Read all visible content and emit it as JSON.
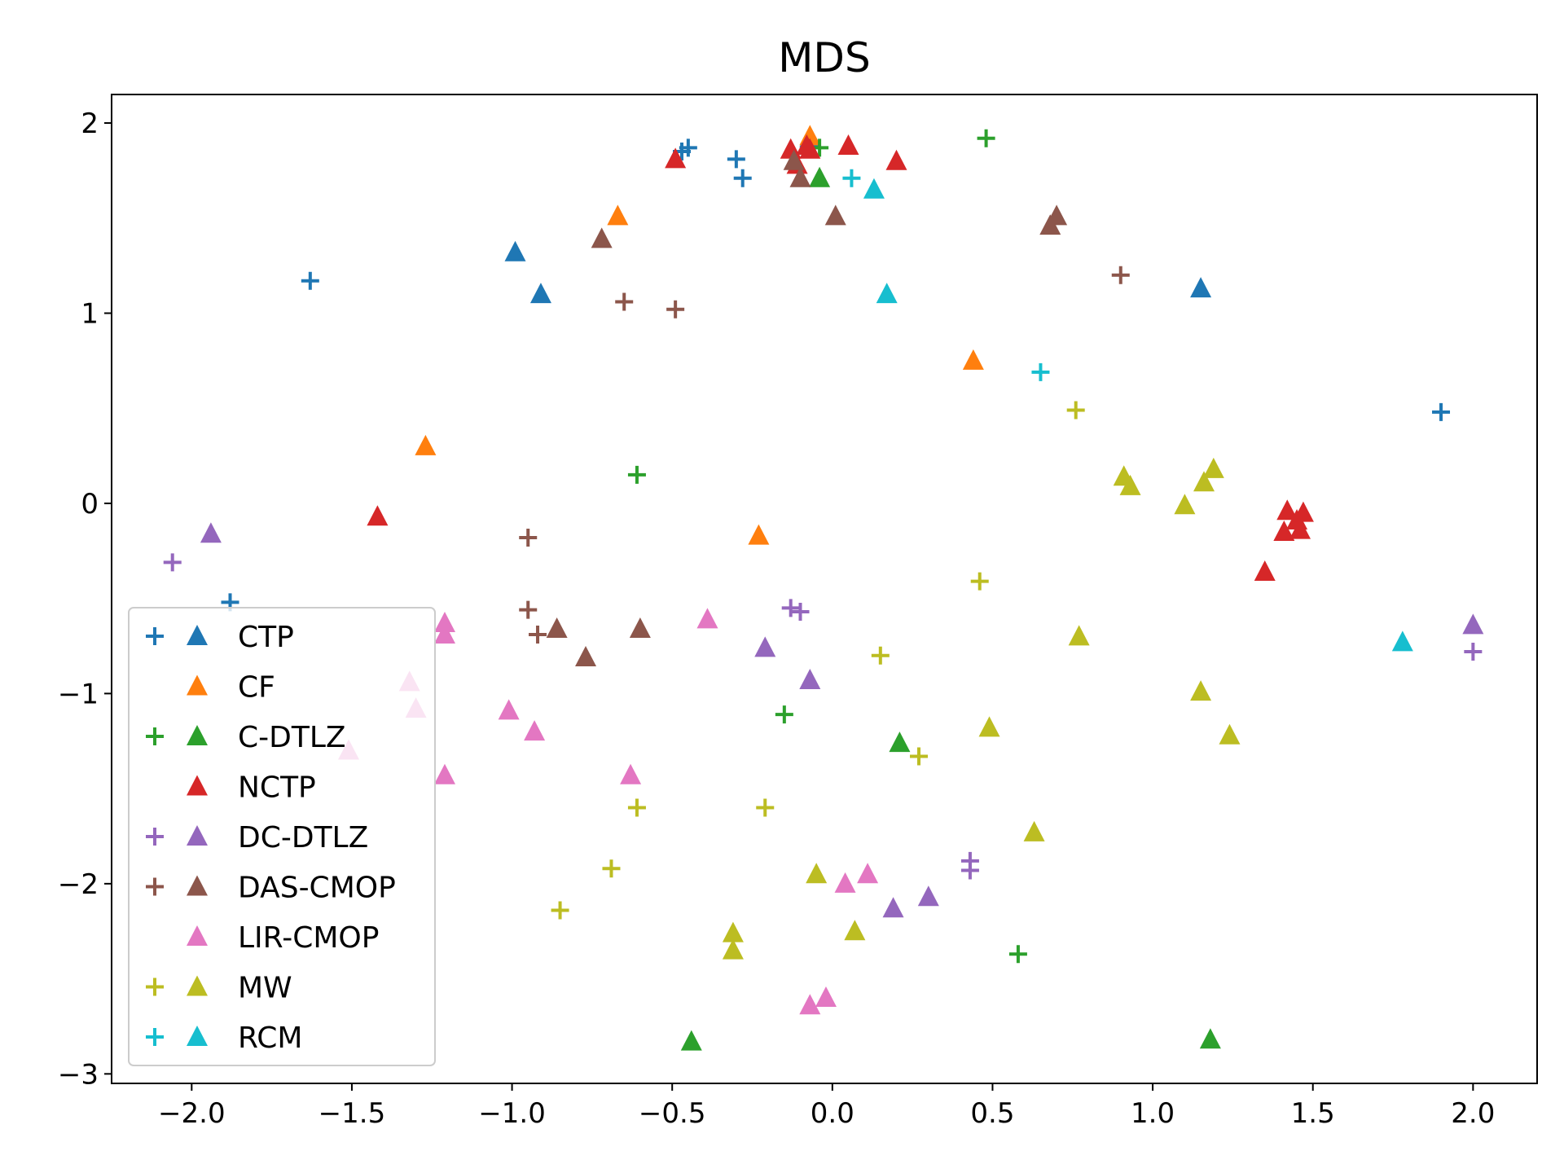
{
  "chart_data": {
    "type": "scatter",
    "title": "MDS",
    "xlabel": "",
    "ylabel": "",
    "xlim": [
      -2.25,
      2.2
    ],
    "ylim": [
      -3.05,
      2.15
    ],
    "xticks": [
      -2.0,
      -1.5,
      -1.0,
      -0.5,
      0.0,
      0.5,
      1.0,
      1.5,
      2.0
    ],
    "xtick_labels": [
      "−2.0",
      "−1.5",
      "−1.0",
      "−0.5",
      "0.0",
      "0.5",
      "1.0",
      "1.5",
      "2.0"
    ],
    "yticks": [
      2,
      1,
      0,
      -1,
      -2,
      -3
    ],
    "ytick_labels": [
      "2",
      "1",
      "0",
      "−1",
      "−2",
      "−3"
    ],
    "legend_position": "lower-left",
    "series": [
      {
        "name": "CTP",
        "color": "#1f77b4",
        "plus": [
          [
            -1.63,
            1.17
          ],
          [
            -0.47,
            1.85
          ],
          [
            -0.45,
            1.87
          ],
          [
            -0.3,
            1.81
          ],
          [
            -0.28,
            1.71
          ],
          [
            -1.88,
            -0.52
          ],
          [
            1.9,
            0.48
          ]
        ],
        "triangle": [
          [
            -0.99,
            1.32
          ],
          [
            -0.91,
            1.1
          ],
          [
            1.15,
            1.13
          ],
          [
            -0.07,
            1.92
          ]
        ]
      },
      {
        "name": "CF",
        "color": "#ff7f0e",
        "plus": [],
        "triangle": [
          [
            -0.67,
            1.51
          ],
          [
            0.44,
            0.75
          ],
          [
            -1.27,
            0.3
          ],
          [
            -0.23,
            -0.17
          ],
          [
            -0.07,
            1.93
          ]
        ]
      },
      {
        "name": "C-DTLZ",
        "color": "#2ca02c",
        "plus": [
          [
            0.48,
            1.92
          ],
          [
            -0.61,
            0.15
          ],
          [
            -0.15,
            -1.11
          ],
          [
            0.58,
            -2.37
          ],
          [
            -0.04,
            1.87
          ]
        ],
        "triangle": [
          [
            -0.04,
            1.71
          ],
          [
            0.21,
            -1.26
          ],
          [
            -0.44,
            -2.83
          ],
          [
            1.18,
            -2.82
          ]
        ]
      },
      {
        "name": "NCTP",
        "color": "#d62728",
        "plus": [],
        "triangle": [
          [
            -0.49,
            1.81
          ],
          [
            -0.13,
            1.86
          ],
          [
            -0.11,
            1.78
          ],
          [
            -0.08,
            1.88
          ],
          [
            -0.07,
            1.86
          ],
          [
            0.05,
            1.88
          ],
          [
            0.2,
            1.8
          ],
          [
            -1.42,
            -0.07
          ],
          [
            1.42,
            -0.04
          ],
          [
            1.45,
            -0.09
          ],
          [
            1.47,
            -0.05
          ],
          [
            1.41,
            -0.15
          ],
          [
            1.46,
            -0.14
          ],
          [
            1.35,
            -0.36
          ]
        ]
      },
      {
        "name": "DC-DTLZ",
        "color": "#9467bd",
        "plus": [
          [
            -2.06,
            -0.31
          ],
          [
            -0.13,
            -0.55
          ],
          [
            -0.1,
            -0.57
          ],
          [
            2.0,
            -0.78
          ],
          [
            0.43,
            -1.88
          ],
          [
            0.43,
            -1.93
          ]
        ],
        "triangle": [
          [
            -1.94,
            -0.16
          ],
          [
            -0.21,
            -0.76
          ],
          [
            -0.07,
            -0.93
          ],
          [
            0.19,
            -2.13
          ],
          [
            0.3,
            -2.07
          ],
          [
            2.0,
            -0.64
          ]
        ]
      },
      {
        "name": "DAS-CMOP",
        "color": "#8c564b",
        "plus": [
          [
            -0.65,
            1.06
          ],
          [
            -0.49,
            1.02
          ],
          [
            0.9,
            1.2
          ],
          [
            -0.95,
            -0.18
          ],
          [
            -0.95,
            -0.56
          ],
          [
            -0.92,
            -0.69
          ]
        ],
        "triangle": [
          [
            -0.72,
            1.39
          ],
          [
            -0.12,
            1.8
          ],
          [
            -0.1,
            1.71
          ],
          [
            0.01,
            1.51
          ],
          [
            0.68,
            1.46
          ],
          [
            0.7,
            1.51
          ],
          [
            -0.86,
            -0.66
          ],
          [
            -0.77,
            -0.81
          ],
          [
            -0.6,
            -0.66
          ]
        ]
      },
      {
        "name": "LIR-CMOP",
        "color": "#e377c2",
        "plus": [],
        "triangle": [
          [
            -1.21,
            -0.63
          ],
          [
            -1.21,
            -0.69
          ],
          [
            -1.32,
            -0.94
          ],
          [
            -1.3,
            -1.08
          ],
          [
            -1.51,
            -1.3
          ],
          [
            -1.21,
            -1.43
          ],
          [
            -1.01,
            -1.09
          ],
          [
            -0.93,
            -1.2
          ],
          [
            -0.39,
            -0.61
          ],
          [
            -0.63,
            -1.43
          ],
          [
            0.04,
            -2.0
          ],
          [
            0.11,
            -1.95
          ],
          [
            -0.07,
            -2.64
          ],
          [
            -0.02,
            -2.6
          ]
        ]
      },
      {
        "name": "MW",
        "color": "#bcbd22",
        "plus": [
          [
            0.76,
            0.49
          ],
          [
            0.46,
            -0.41
          ],
          [
            0.15,
            -0.8
          ],
          [
            0.27,
            -1.33
          ],
          [
            -0.61,
            -1.6
          ],
          [
            -0.21,
            -1.6
          ],
          [
            -0.69,
            -1.92
          ],
          [
            -0.85,
            -2.14
          ]
        ],
        "triangle": [
          [
            0.91,
            0.14
          ],
          [
            0.93,
            0.09
          ],
          [
            1.1,
            -0.01
          ],
          [
            1.16,
            0.11
          ],
          [
            1.19,
            0.18
          ],
          [
            0.77,
            -0.7
          ],
          [
            1.15,
            -0.99
          ],
          [
            0.49,
            -1.18
          ],
          [
            1.24,
            -1.22
          ],
          [
            0.63,
            -1.73
          ],
          [
            -0.05,
            -1.95
          ],
          [
            -0.31,
            -2.26
          ],
          [
            -0.31,
            -2.35
          ],
          [
            0.07,
            -2.25
          ]
        ]
      },
      {
        "name": "RCM",
        "color": "#17becf",
        "plus": [
          [
            0.06,
            1.71
          ],
          [
            0.65,
            0.69
          ]
        ],
        "triangle": [
          [
            0.13,
            1.65
          ],
          [
            0.17,
            1.1
          ],
          [
            1.78,
            -0.73
          ]
        ]
      }
    ],
    "legend": [
      {
        "name": "CTP",
        "show_plus": true
      },
      {
        "name": "CF",
        "show_plus": false
      },
      {
        "name": "C-DTLZ",
        "show_plus": true
      },
      {
        "name": "NCTP",
        "show_plus": false
      },
      {
        "name": "DC-DTLZ",
        "show_plus": true
      },
      {
        "name": "DAS-CMOP",
        "show_plus": true
      },
      {
        "name": "LIR-CMOP",
        "show_plus": false
      },
      {
        "name": "MW",
        "show_plus": true
      },
      {
        "name": "RCM",
        "show_plus": true
      }
    ]
  }
}
